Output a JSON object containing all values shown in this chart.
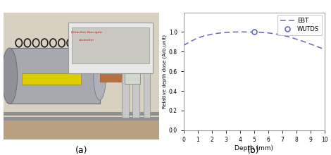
{
  "ebt_x": [
    0,
    0.5,
    1,
    1.5,
    2,
    2.5,
    3,
    3.5,
    4,
    4.5,
    5,
    5.5,
    6,
    6.5,
    7,
    7.5,
    8,
    8.5,
    9,
    9.5,
    10
  ],
  "ebt_y": [
    0.865,
    0.905,
    0.94,
    0.963,
    0.978,
    0.989,
    0.996,
    1.0,
    1.001,
    1.001,
    0.999,
    0.996,
    0.991,
    0.982,
    0.968,
    0.95,
    0.928,
    0.905,
    0.878,
    0.851,
    0.825
  ],
  "wutds_x": [
    5.0
  ],
  "wutds_y": [
    1.0
  ],
  "line_color": "#6666bb",
  "xlabel": "Depth (mm)",
  "ylabel": "Relative depth dose (Arb.unit)",
  "xlim": [
    0,
    10
  ],
  "ylim": [
    0,
    1.2
  ],
  "yticks": [
    0,
    0.2,
    0.4,
    0.6,
    0.8,
    1.0
  ],
  "xticks": [
    0,
    1,
    2,
    3,
    4,
    5,
    6,
    7,
    8,
    9,
    10
  ],
  "legend_ebt": "EBT",
  "legend_wutds": "WUTDS",
  "label_a": "(a)",
  "label_b": "(b)",
  "photo_bg_color": "#c8b89a",
  "photo_wall_color": "#d8d0c0",
  "photo_floor_color": "#b8a080",
  "cyl_color": "#a8a8b0",
  "cyl_edge_color": "#707078",
  "coil_color": "#1a1a1a",
  "inset_bg": "#e8e8e8",
  "inset_edge": "#999999",
  "stand_color": "#c8c8c8",
  "stand_edge": "#909090",
  "label_yellow": "#ddcc00",
  "pipe_color": "#b87040",
  "annotation_color": "#cc0000"
}
